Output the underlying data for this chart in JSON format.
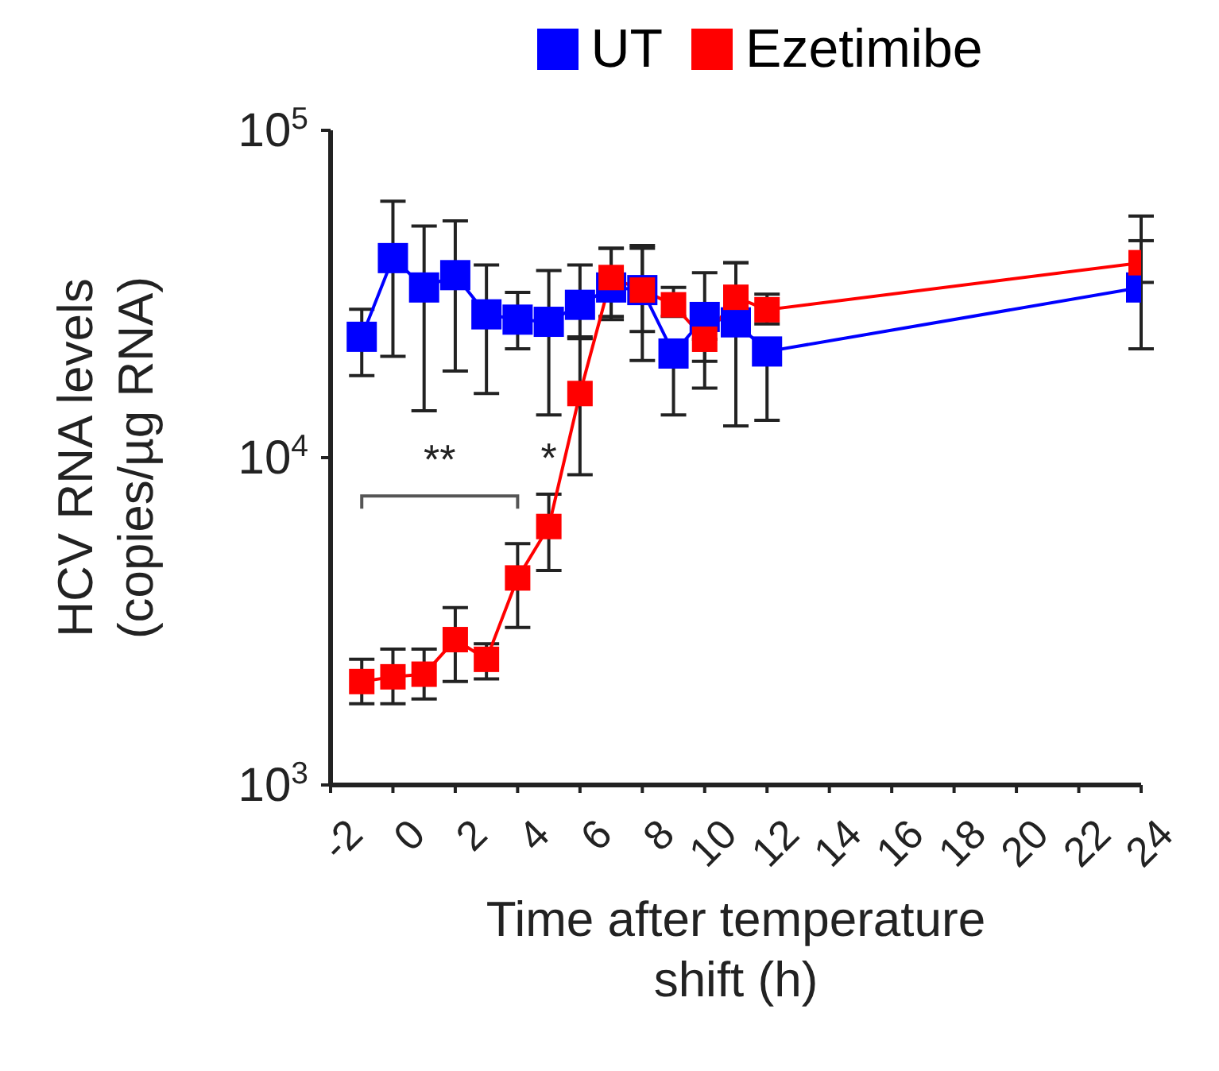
{
  "chart_data": {
    "type": "line",
    "xlabel": "Time after temperature\nshift (h)",
    "ylabel": "HCV RNA levels\n(copies/µg RNA)",
    "x": [
      -1,
      0,
      1,
      2,
      3,
      4,
      5,
      6,
      7,
      8,
      9,
      10,
      11,
      12,
      24
    ],
    "series": [
      {
        "name": "UT",
        "color": "#0000ff",
        "values": [
          23400,
          40700,
          33100,
          36100,
          27400,
          26400,
          26000,
          29300,
          33100,
          32500,
          20800,
          26900,
          25900,
          21100,
          33100
        ],
        "errors": [
          [
            17800,
            28400
          ],
          [
            20400,
            60700
          ],
          [
            13900,
            51000
          ],
          [
            18400,
            52900
          ],
          [
            15700,
            38800
          ],
          [
            21500,
            32000
          ],
          [
            13500,
            37300
          ],
          [
            23100,
            38800
          ],
          [
            27000,
            43600
          ],
          [
            19800,
            43600
          ],
          [
            13500,
            20800
          ],
          [
            16300,
            36700
          ],
          [
            12500,
            39400
          ],
          [
            13000,
            21100
          ],
          [
            21500,
            46000
          ]
        ]
      },
      {
        "name": "Ezetimibe",
        "color": "#ff0000",
        "values": [
          2070,
          2140,
          2180,
          2780,
          2420,
          4290,
          6160,
          15700,
          35500,
          32500,
          29300,
          23000,
          30900,
          28300,
          39400
        ],
        "errors": [
          [
            1770,
            2420
          ],
          [
            1770,
            2600
          ],
          [
            1830,
            2600
          ],
          [
            2070,
            3480
          ],
          [
            2110,
            2700
          ],
          [
            3030,
            5460
          ],
          [
            4520,
            7730
          ],
          [
            8870,
            23400
          ],
          [
            26400,
            43600
          ],
          [
            24300,
            44500
          ],
          [
            27000,
            33100
          ],
          [
            19700,
            23000
          ],
          [
            30900,
            39400
          ],
          [
            25600,
            31600
          ],
          [
            34300,
            54700
          ]
        ]
      }
    ],
    "xlim": [
      -2,
      24
    ],
    "xticks": [
      -2,
      0,
      2,
      4,
      6,
      8,
      10,
      12,
      14,
      16,
      18,
      20,
      22,
      24
    ],
    "log": true,
    "ylim": [
      1000,
      100000
    ],
    "yticks": [
      {
        "value": 1000,
        "label": "10$^{3}$"
      },
      {
        "value": 10000,
        "label": "10$^{4}$"
      },
      {
        "value": 100000,
        "label": "10$^{5}$"
      }
    ],
    "annotations": [
      "**",
      "*"
    ],
    "marker": "square",
    "legend": "top",
    "grid": false
  }
}
